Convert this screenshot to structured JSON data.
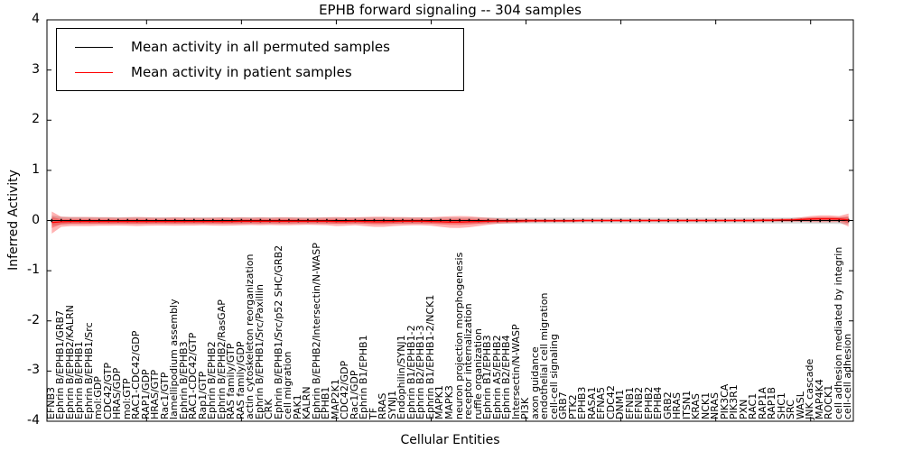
{
  "colors": {
    "permuted_line": "#000000",
    "patient_line": "#ff0000",
    "patient_band": "#ff0000",
    "permuted_band": "#aaaaaa",
    "frame": "#000000",
    "background": "#ffffff"
  },
  "chart_data": {
    "type": "line",
    "title": "EPHB forward signaling -- 304 samples",
    "xlabel": "Cellular Entities",
    "ylabel": "Inferred Activity",
    "ylim": [
      -4,
      4
    ],
    "yticks": [
      4,
      3,
      2,
      1,
      0,
      -1,
      -2,
      -3,
      -4
    ],
    "ytick_labels": [
      "4",
      "3",
      "2",
      "1",
      "0",
      "-1",
      "-2",
      "-3",
      "-4"
    ],
    "grid": false,
    "legend_position": "upper left",
    "categories": [
      "EFNB3",
      "Ephrin B/EPHB1/GRB7",
      "Ephrin B/EPHB2/KALRN",
      "Ephrin B/EPHB1",
      "Ephrin B/EPHB1/Src",
      "mol:GDP",
      "CDC42/GTP",
      "HRAS/GDP",
      "mol:GTP",
      "RAC1-CDC42/GDP",
      "RAP1/GDP",
      "HRAS/GTP",
      "Rac1/GTP",
      "lamellipodium assembly",
      "Ephrin B/EPHB3",
      "RAC1-CDC42/GTP",
      "Rap1/GTP",
      "Ephrin B/EPHB2",
      "Ephrin B/EPHB2/RasGAP",
      "RAS family/GTP",
      "RAS family/GDP",
      "actin cytoskeleton reorganization",
      "Ephrin B/EPHB1/Src/Paxillin",
      "CRK",
      "Ephrin B/EPHB1/Src/p52 SHC/GRB2",
      "cell migration",
      "PAK1",
      "KALRN",
      "Ephrin B/EPHB2/Intersectin/N-WASP",
      "EPHB1",
      "MAP2K1",
      "CDC42/GDP",
      "Rac1/GDP",
      "Ephrin B1/EPHB1",
      "TF",
      "RRAS",
      "SYNJ1",
      "Endophilin/SYNJ1",
      "Ephrin B1/EPHB1-2",
      "Ephrin B2/EPHB1-3",
      "Ephrin B1/EPHB1-2/NCK1",
      "MAPK1",
      "MAPK3",
      "neuron projection morphogenesis",
      "receptor internalization",
      "ruffle organization",
      "Ephrin B1/EPHB3",
      "Ephrin A5/EPHB2",
      "Ephrin B2/EPHB4",
      "Intersectin/N-WASP",
      "PI3K",
      "axon guidance",
      "endothelial cell migration",
      "cell-cell signaling",
      "GRB7",
      "PTK2",
      "EPHB3",
      "RASA1",
      "EFNA5",
      "CDC42",
      "DNM1",
      "EFNB1",
      "EFNB2",
      "EPHB2",
      "EPHB4",
      "GRB2",
      "HRAS",
      "ITSN1",
      "KRAS",
      "NCK1",
      "NRAS",
      "PIK3CA",
      "PIK3R1",
      "PXN",
      "RAC1",
      "RAP1A",
      "RAP1B",
      "SHC1",
      "SRC",
      "WASL",
      "JNK cascade",
      "MAP4K4",
      "ROCK1",
      "cell adhesion mediated by integrin",
      "cell-cell adhesion"
    ],
    "series": [
      {
        "name": "Mean activity in all permuted samples",
        "color": "#000000",
        "values": [
          0,
          0,
          0,
          0,
          0,
          0,
          0,
          0,
          0,
          0,
          0,
          0,
          0,
          0,
          0,
          0,
          0,
          0,
          0,
          0,
          0,
          0,
          0,
          0,
          0,
          0,
          0,
          0,
          0,
          0,
          0,
          0,
          0,
          0,
          0,
          0,
          0,
          0,
          0,
          0,
          0,
          0,
          0,
          0,
          0,
          0,
          0,
          0,
          0,
          0,
          0,
          0,
          0,
          0,
          0,
          0,
          0,
          0,
          0,
          0,
          0,
          0,
          0,
          0,
          0,
          0,
          0,
          0,
          0,
          0,
          0,
          0,
          0,
          0,
          0,
          0,
          0,
          0,
          0,
          0,
          0,
          0,
          0,
          0,
          0
        ],
        "band_halfwidth": [
          0.1,
          0.075,
          0.07,
          0.07,
          0.068,
          0.068,
          0.066,
          0.066,
          0.066,
          0.066,
          0.065,
          0.065,
          0.065,
          0.065,
          0.065,
          0.065,
          0.065,
          0.065,
          0.065,
          0.065,
          0.064,
          0.064,
          0.064,
          0.064,
          0.064,
          0.064,
          0.064,
          0.064,
          0.064,
          0.064,
          0.063,
          0.063,
          0.063,
          0.063,
          0.063,
          0.063,
          0.063,
          0.063,
          0.063,
          0.063,
          0.062,
          0.062,
          0.062,
          0.062,
          0.062,
          0.062,
          0.062,
          0.062,
          0.062,
          0.062,
          0.062,
          0.062,
          0.062,
          0.062,
          0.062,
          0.062,
          0.062,
          0.062,
          0.062,
          0.062,
          0.062,
          0.062,
          0.062,
          0.062,
          0.062,
          0.062,
          0.062,
          0.062,
          0.062,
          0.062,
          0.062,
          0.062,
          0.062,
          0.062,
          0.062,
          0.062,
          0.062,
          0.062,
          0.062,
          0.062,
          0.065,
          0.065,
          0.065,
          0.068,
          0.075
        ]
      },
      {
        "name": "Mean activity in patient samples",
        "color": "#ff0000",
        "values": [
          -0.04,
          -0.025,
          -0.02,
          -0.02,
          -0.02,
          -0.02,
          -0.02,
          -0.02,
          -0.02,
          -0.02,
          -0.02,
          -0.02,
          -0.02,
          -0.02,
          -0.02,
          -0.02,
          -0.02,
          -0.02,
          -0.02,
          -0.02,
          -0.015,
          -0.015,
          -0.015,
          -0.015,
          -0.015,
          -0.015,
          -0.015,
          -0.015,
          -0.015,
          -0.015,
          -0.02,
          -0.02,
          -0.015,
          -0.02,
          -0.025,
          -0.025,
          -0.02,
          -0.015,
          -0.015,
          -0.015,
          -0.02,
          -0.025,
          -0.03,
          -0.03,
          -0.025,
          -0.02,
          -0.015,
          -0.01,
          -0.01,
          -0.01,
          -0.005,
          -0.005,
          -0.005,
          -0.005,
          -0.005,
          -0.005,
          0,
          0,
          0,
          0,
          0,
          0,
          0,
          0,
          0,
          0,
          0,
          0,
          0,
          0,
          0,
          0,
          0,
          0,
          0,
          0.005,
          0.005,
          0.01,
          0.01,
          0.02,
          0.03,
          0.035,
          0.035,
          0.03,
          0.01
        ],
        "band_halfwidth": [
          0.22,
          0.1,
          0.09,
          0.09,
          0.09,
          0.085,
          0.085,
          0.08,
          0.085,
          0.09,
          0.085,
          0.08,
          0.08,
          0.085,
          0.08,
          0.08,
          0.075,
          0.08,
          0.085,
          0.08,
          0.08,
          0.075,
          0.08,
          0.075,
          0.08,
          0.08,
          0.075,
          0.07,
          0.075,
          0.08,
          0.09,
          0.085,
          0.08,
          0.09,
          0.1,
          0.1,
          0.09,
          0.085,
          0.08,
          0.08,
          0.085,
          0.1,
          0.115,
          0.12,
          0.11,
          0.09,
          0.07,
          0.055,
          0.045,
          0.04,
          0.035,
          0.03,
          0.03,
          0.028,
          0.028,
          0.026,
          0.025,
          0.025,
          0.025,
          0.025,
          0.025,
          0.025,
          0.025,
          0.025,
          0.025,
          0.025,
          0.025,
          0.025,
          0.025,
          0.025,
          0.025,
          0.025,
          0.026,
          0.028,
          0.03,
          0.03,
          0.03,
          0.032,
          0.035,
          0.045,
          0.06,
          0.07,
          0.07,
          0.06,
          0.13
        ]
      }
    ]
  }
}
